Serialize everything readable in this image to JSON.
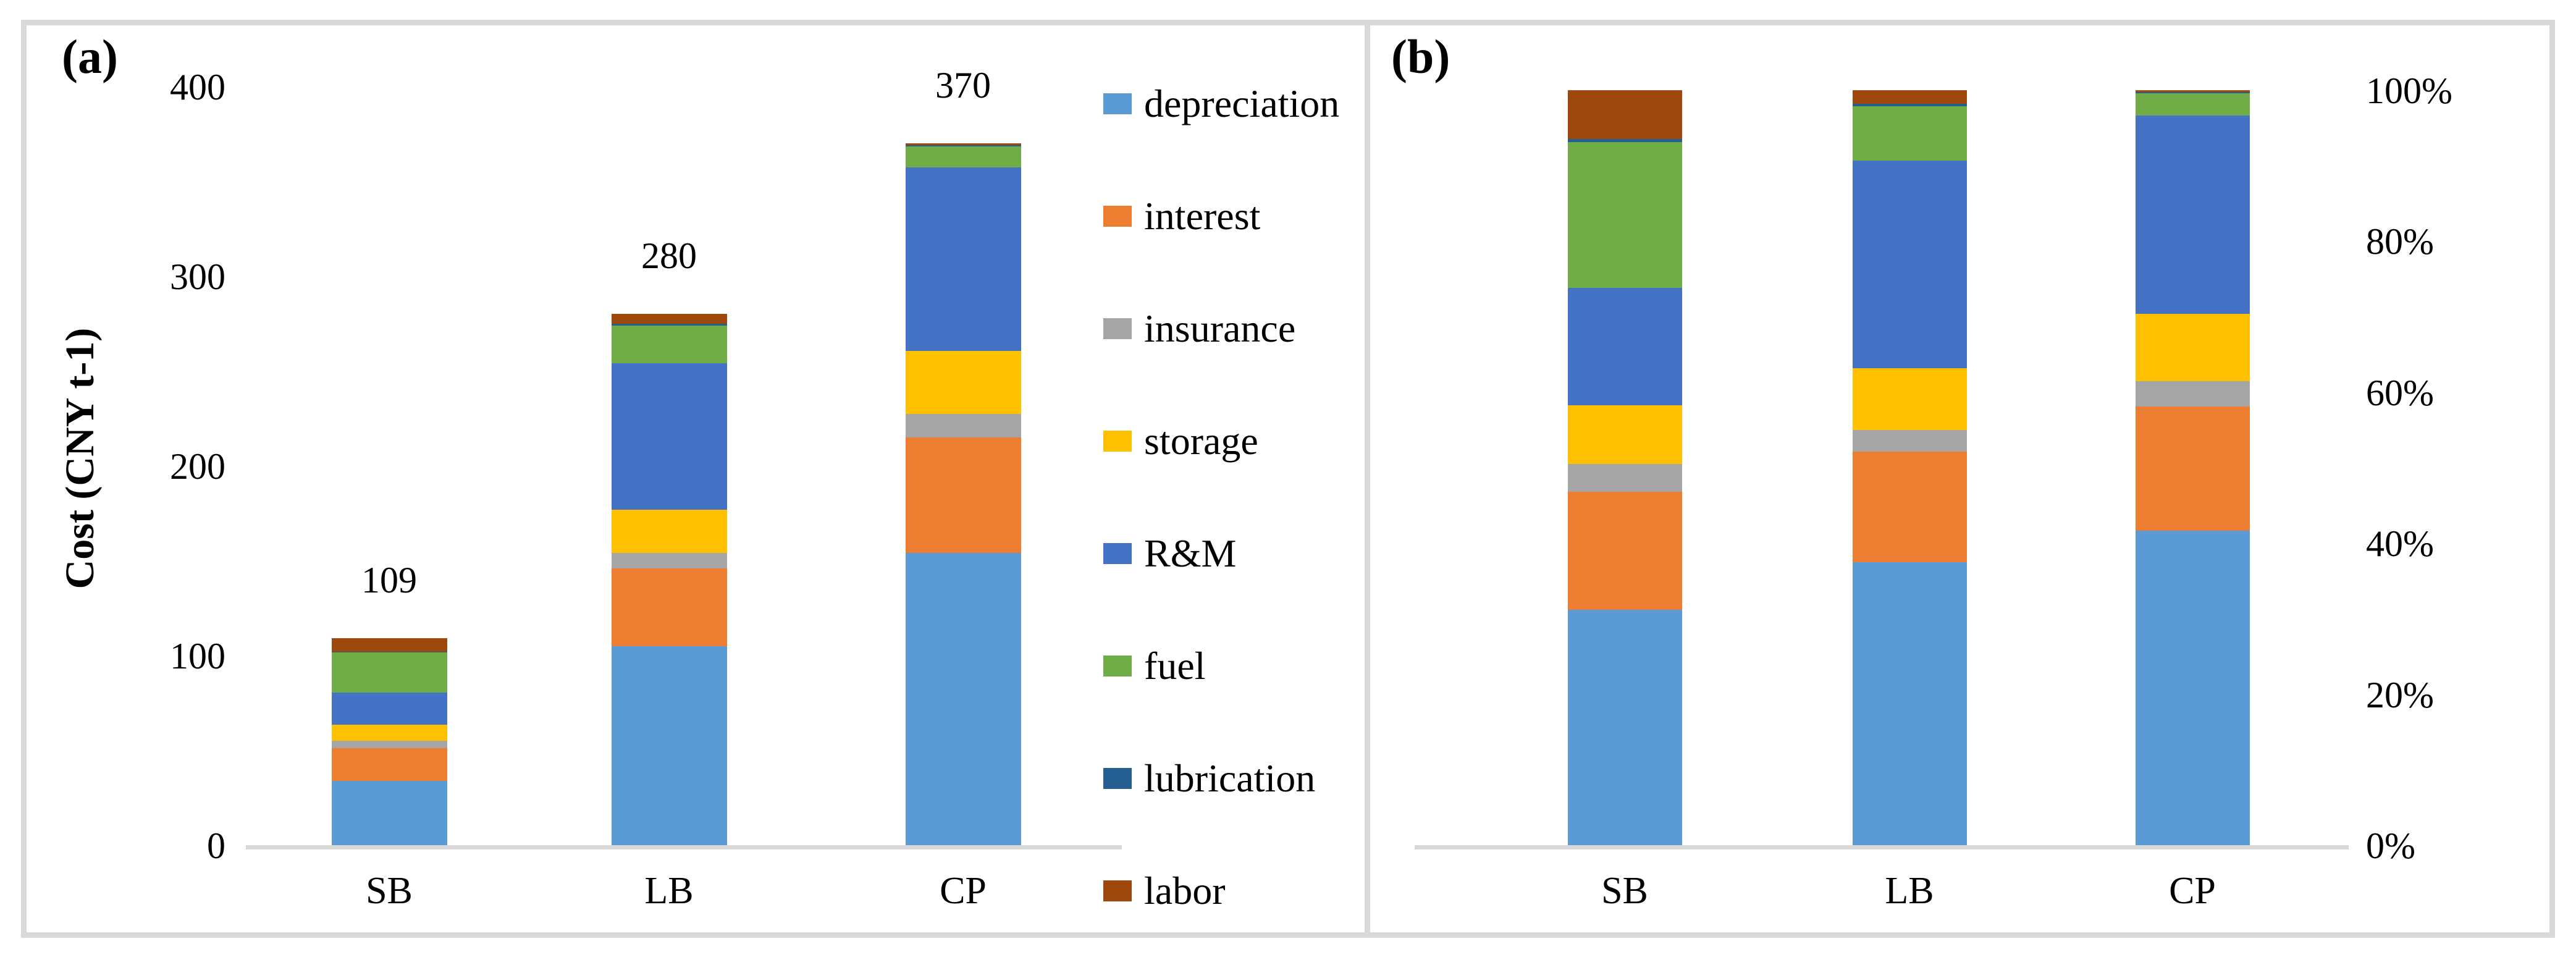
{
  "panels": {
    "a": {
      "label": "(a)",
      "y_axis_title": "Cost (CNY t-1)",
      "y_tick_labels": [
        "0",
        "100",
        "200",
        "300",
        "400"
      ],
      "total_labels": [
        "109",
        "280",
        "370"
      ]
    },
    "b": {
      "label": "(b)",
      "y_tick_labels": [
        "0%",
        "20%",
        "40%",
        "60%",
        "80%",
        "100%"
      ]
    }
  },
  "categories": [
    "SB",
    "LB",
    "CP"
  ],
  "legend": {
    "items": [
      "depreciation",
      "interest",
      "insurance",
      "storage",
      "R&M",
      "fuel",
      "lubrication",
      "labor"
    ]
  },
  "colors": {
    "depreciation": "#5B9BD5",
    "interest": "#ED7D31",
    "insurance": "#A5A5A5",
    "storage": "#FFC000",
    "rm": "#4472C4",
    "fuel": "#70AD47",
    "lubrication": "#255E91",
    "labor": "#9E480E",
    "axis_line": "#D9D9D9",
    "frame": "#D9D9D9",
    "text": "#000000"
  },
  "chart_data": [
    {
      "type": "bar",
      "stacked": true,
      "title": "(a)",
      "ylabel": "Cost (CNY t-1)",
      "ylim": [
        0,
        400
      ],
      "yticks": [
        0,
        100,
        200,
        300,
        400
      ],
      "grid": false,
      "legend_position": "right",
      "categories": [
        "SB",
        "LB",
        "CP"
      ],
      "series": [
        {
          "name": "depreciation",
          "color": "#5B9BD5",
          "values": [
            34,
            105,
            154
          ]
        },
        {
          "name": "interest",
          "color": "#ED7D31",
          "values": [
            17,
            41,
            61
          ]
        },
        {
          "name": "insurance",
          "color": "#A5A5A5",
          "values": [
            4,
            8,
            12.5
          ]
        },
        {
          "name": "storage",
          "color": "#FFC000",
          "values": [
            8.5,
            23,
            33
          ]
        },
        {
          "name": "R&M",
          "color": "#4472C4",
          "values": [
            17,
            77,
            97
          ]
        },
        {
          "name": "fuel",
          "color": "#70AD47",
          "values": [
            21,
            20,
            11
          ]
        },
        {
          "name": "lubrication",
          "color": "#255E91",
          "values": [
            0.5,
            1,
            0.5
          ]
        },
        {
          "name": "labor",
          "color": "#9E480E",
          "values": [
            7,
            5,
            1
          ]
        }
      ],
      "bar_totals": [
        109,
        280,
        370
      ]
    },
    {
      "type": "bar",
      "stacked": "percent",
      "title": "(b)",
      "ylim_percent": [
        0,
        100
      ],
      "yticks_percent": [
        "0%",
        "20%",
        "40%",
        "60%",
        "80%",
        "100%"
      ],
      "grid": false,
      "categories": [
        "SB",
        "LB",
        "CP"
      ],
      "series": [
        {
          "name": "depreciation",
          "color": "#5B9BD5",
          "values": [
            34,
            105,
            154
          ]
        },
        {
          "name": "interest",
          "color": "#ED7D31",
          "values": [
            17,
            41,
            61
          ]
        },
        {
          "name": "insurance",
          "color": "#A5A5A5",
          "values": [
            4,
            8,
            12.5
          ]
        },
        {
          "name": "storage",
          "color": "#FFC000",
          "values": [
            8.5,
            23,
            33
          ]
        },
        {
          "name": "R&M",
          "color": "#4472C4",
          "values": [
            17,
            77,
            97
          ]
        },
        {
          "name": "fuel",
          "color": "#70AD47",
          "values": [
            21,
            20,
            11
          ]
        },
        {
          "name": "lubrication",
          "color": "#255E91",
          "values": [
            0.5,
            1,
            0.5
          ]
        },
        {
          "name": "labor",
          "color": "#9E480E",
          "values": [
            7,
            5,
            1
          ]
        }
      ]
    }
  ]
}
